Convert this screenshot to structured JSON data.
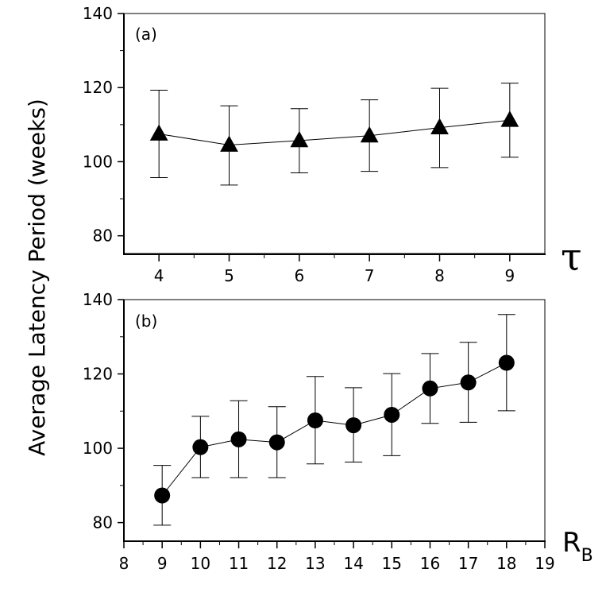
{
  "chart_data": [
    {
      "type": "line",
      "panel_label": "(a)",
      "marker": "triangle",
      "xlabel": "τ",
      "ylabel": "Average Latency Period (weeks)",
      "xlim": [
        3.5,
        9.5
      ],
      "ylim": [
        75,
        140
      ],
      "x_ticks": [
        "4",
        "5",
        "6",
        "7",
        "8",
        "9"
      ],
      "y_ticks": [
        "80",
        "100",
        "120",
        "140"
      ],
      "x": [
        4,
        5,
        6,
        7,
        8,
        9
      ],
      "y": [
        107.5,
        104.5,
        105.7,
        107.0,
        109.2,
        111.2
      ],
      "error_low": [
        95.7,
        93.7,
        97.0,
        97.4,
        98.4,
        101.2
      ],
      "error_high": [
        119.3,
        115.1,
        114.3,
        116.7,
        119.8,
        121.2
      ]
    },
    {
      "type": "line",
      "panel_label": "(b)",
      "marker": "circle",
      "xlabel": "R",
      "xlabel_subscript": "B",
      "ylabel": "Average Latency Period (weeks)",
      "xlim": [
        8,
        19
      ],
      "ylim": [
        75,
        140
      ],
      "x_ticks": [
        "8",
        "9",
        "10",
        "11",
        "12",
        "13",
        "14",
        "15",
        "16",
        "17",
        "18",
        "19"
      ],
      "y_ticks": [
        "80",
        "100",
        "120",
        "140"
      ],
      "x": [
        9,
        10,
        11,
        12,
        13,
        14,
        15,
        16,
        17,
        18
      ],
      "y": [
        87.3,
        100.3,
        102.4,
        101.6,
        107.5,
        106.2,
        109.0,
        116.1,
        117.7,
        123.0
      ],
      "error_low": [
        79.3,
        92.1,
        92.1,
        92.1,
        95.8,
        96.3,
        98.0,
        106.7,
        107.0,
        110.1
      ],
      "error_high": [
        95.4,
        108.6,
        112.8,
        111.2,
        119.3,
        116.3,
        120.1,
        125.5,
        128.5,
        136.0
      ]
    }
  ]
}
